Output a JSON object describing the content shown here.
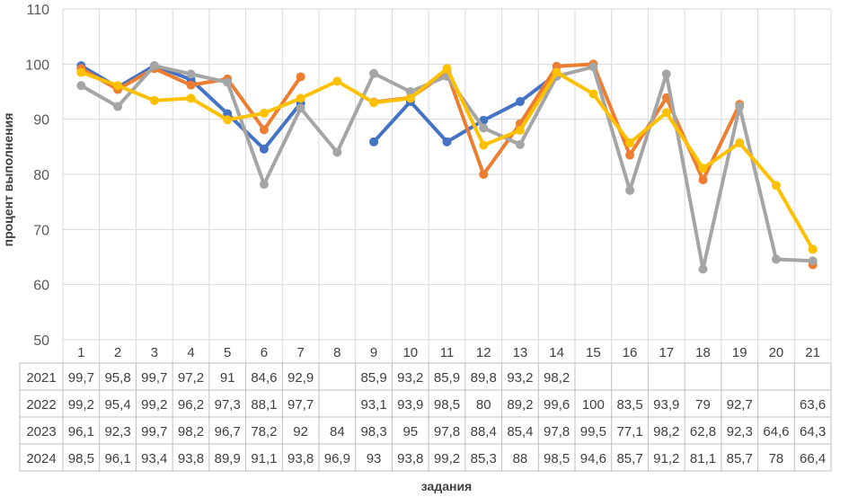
{
  "chart_data": {
    "type": "line",
    "title": "",
    "xlabel": "задания",
    "ylabel": "процент выполнения",
    "ylim": [
      50,
      110
    ],
    "yticks": [
      50,
      60,
      70,
      80,
      90,
      100,
      110
    ],
    "grid": true,
    "legend": "data table below chart",
    "categories": [
      "1",
      "2",
      "3",
      "4",
      "5",
      "6",
      "7",
      "8",
      "9",
      "10",
      "11",
      "12",
      "13",
      "14",
      "15",
      "16",
      "17",
      "18",
      "19",
      "20",
      "21"
    ],
    "series": [
      {
        "name": "2021",
        "color": "#4472C4",
        "values": [
          99.7,
          95.8,
          99.7,
          97.2,
          91,
          84.6,
          92.9,
          null,
          85.9,
          93.2,
          85.9,
          89.8,
          93.2,
          98.2,
          null,
          null,
          null,
          null,
          null,
          null,
          null
        ],
        "labels": [
          "99,7",
          "95,8",
          "99,7",
          "97,2",
          "91",
          "84,6",
          "92,9",
          "",
          "85,9",
          "93,2",
          "85,9",
          "89,8",
          "93,2",
          "98,2",
          "",
          "",
          "",
          "",
          "",
          "",
          ""
        ]
      },
      {
        "name": "2022",
        "color": "#ED7D31",
        "values": [
          99.2,
          95.4,
          99.2,
          96.2,
          97.3,
          88.1,
          97.7,
          null,
          93.1,
          93.9,
          98.5,
          80,
          89.2,
          99.6,
          100,
          83.5,
          93.9,
          79,
          92.7,
          null,
          63.6
        ],
        "labels": [
          "99,2",
          "95,4",
          "99,2",
          "96,2",
          "97,3",
          "88,1",
          "97,7",
          "",
          "93,1",
          "93,9",
          "98,5",
          "80",
          "89,2",
          "99,6",
          "100",
          "83,5",
          "93,9",
          "79",
          "92,7",
          "",
          "63,6"
        ]
      },
      {
        "name": "2023",
        "color": "#A5A5A5",
        "values": [
          96.1,
          92.3,
          99.7,
          98.2,
          96.7,
          78.2,
          92,
          84,
          98.3,
          95,
          97.8,
          88.4,
          85.4,
          97.8,
          99.5,
          77.1,
          98.2,
          62.8,
          92.3,
          64.6,
          64.3
        ],
        "labels": [
          "96,1",
          "92,3",
          "99,7",
          "98,2",
          "96,7",
          "78,2",
          "92",
          "84",
          "98,3",
          "95",
          "97,8",
          "88,4",
          "85,4",
          "97,8",
          "99,5",
          "77,1",
          "98,2",
          "62,8",
          "92,3",
          "64,6",
          "64,3"
        ]
      },
      {
        "name": "2024",
        "color": "#FFC000",
        "values": [
          98.5,
          96.1,
          93.4,
          93.8,
          89.9,
          91.1,
          93.8,
          96.9,
          93,
          93.8,
          99.2,
          85.3,
          88,
          98.5,
          94.6,
          85.7,
          91.2,
          81.1,
          85.7,
          78,
          66.4
        ],
        "labels": [
          "98,5",
          "96,1",
          "93,4",
          "93,8",
          "89,9",
          "91,1",
          "93,8",
          "96,9",
          "93",
          "93,8",
          "99,2",
          "85,3",
          "88",
          "98,5",
          "94,6",
          "85,7",
          "91,2",
          "81,1",
          "85,7",
          "78",
          "66,4"
        ]
      }
    ]
  }
}
